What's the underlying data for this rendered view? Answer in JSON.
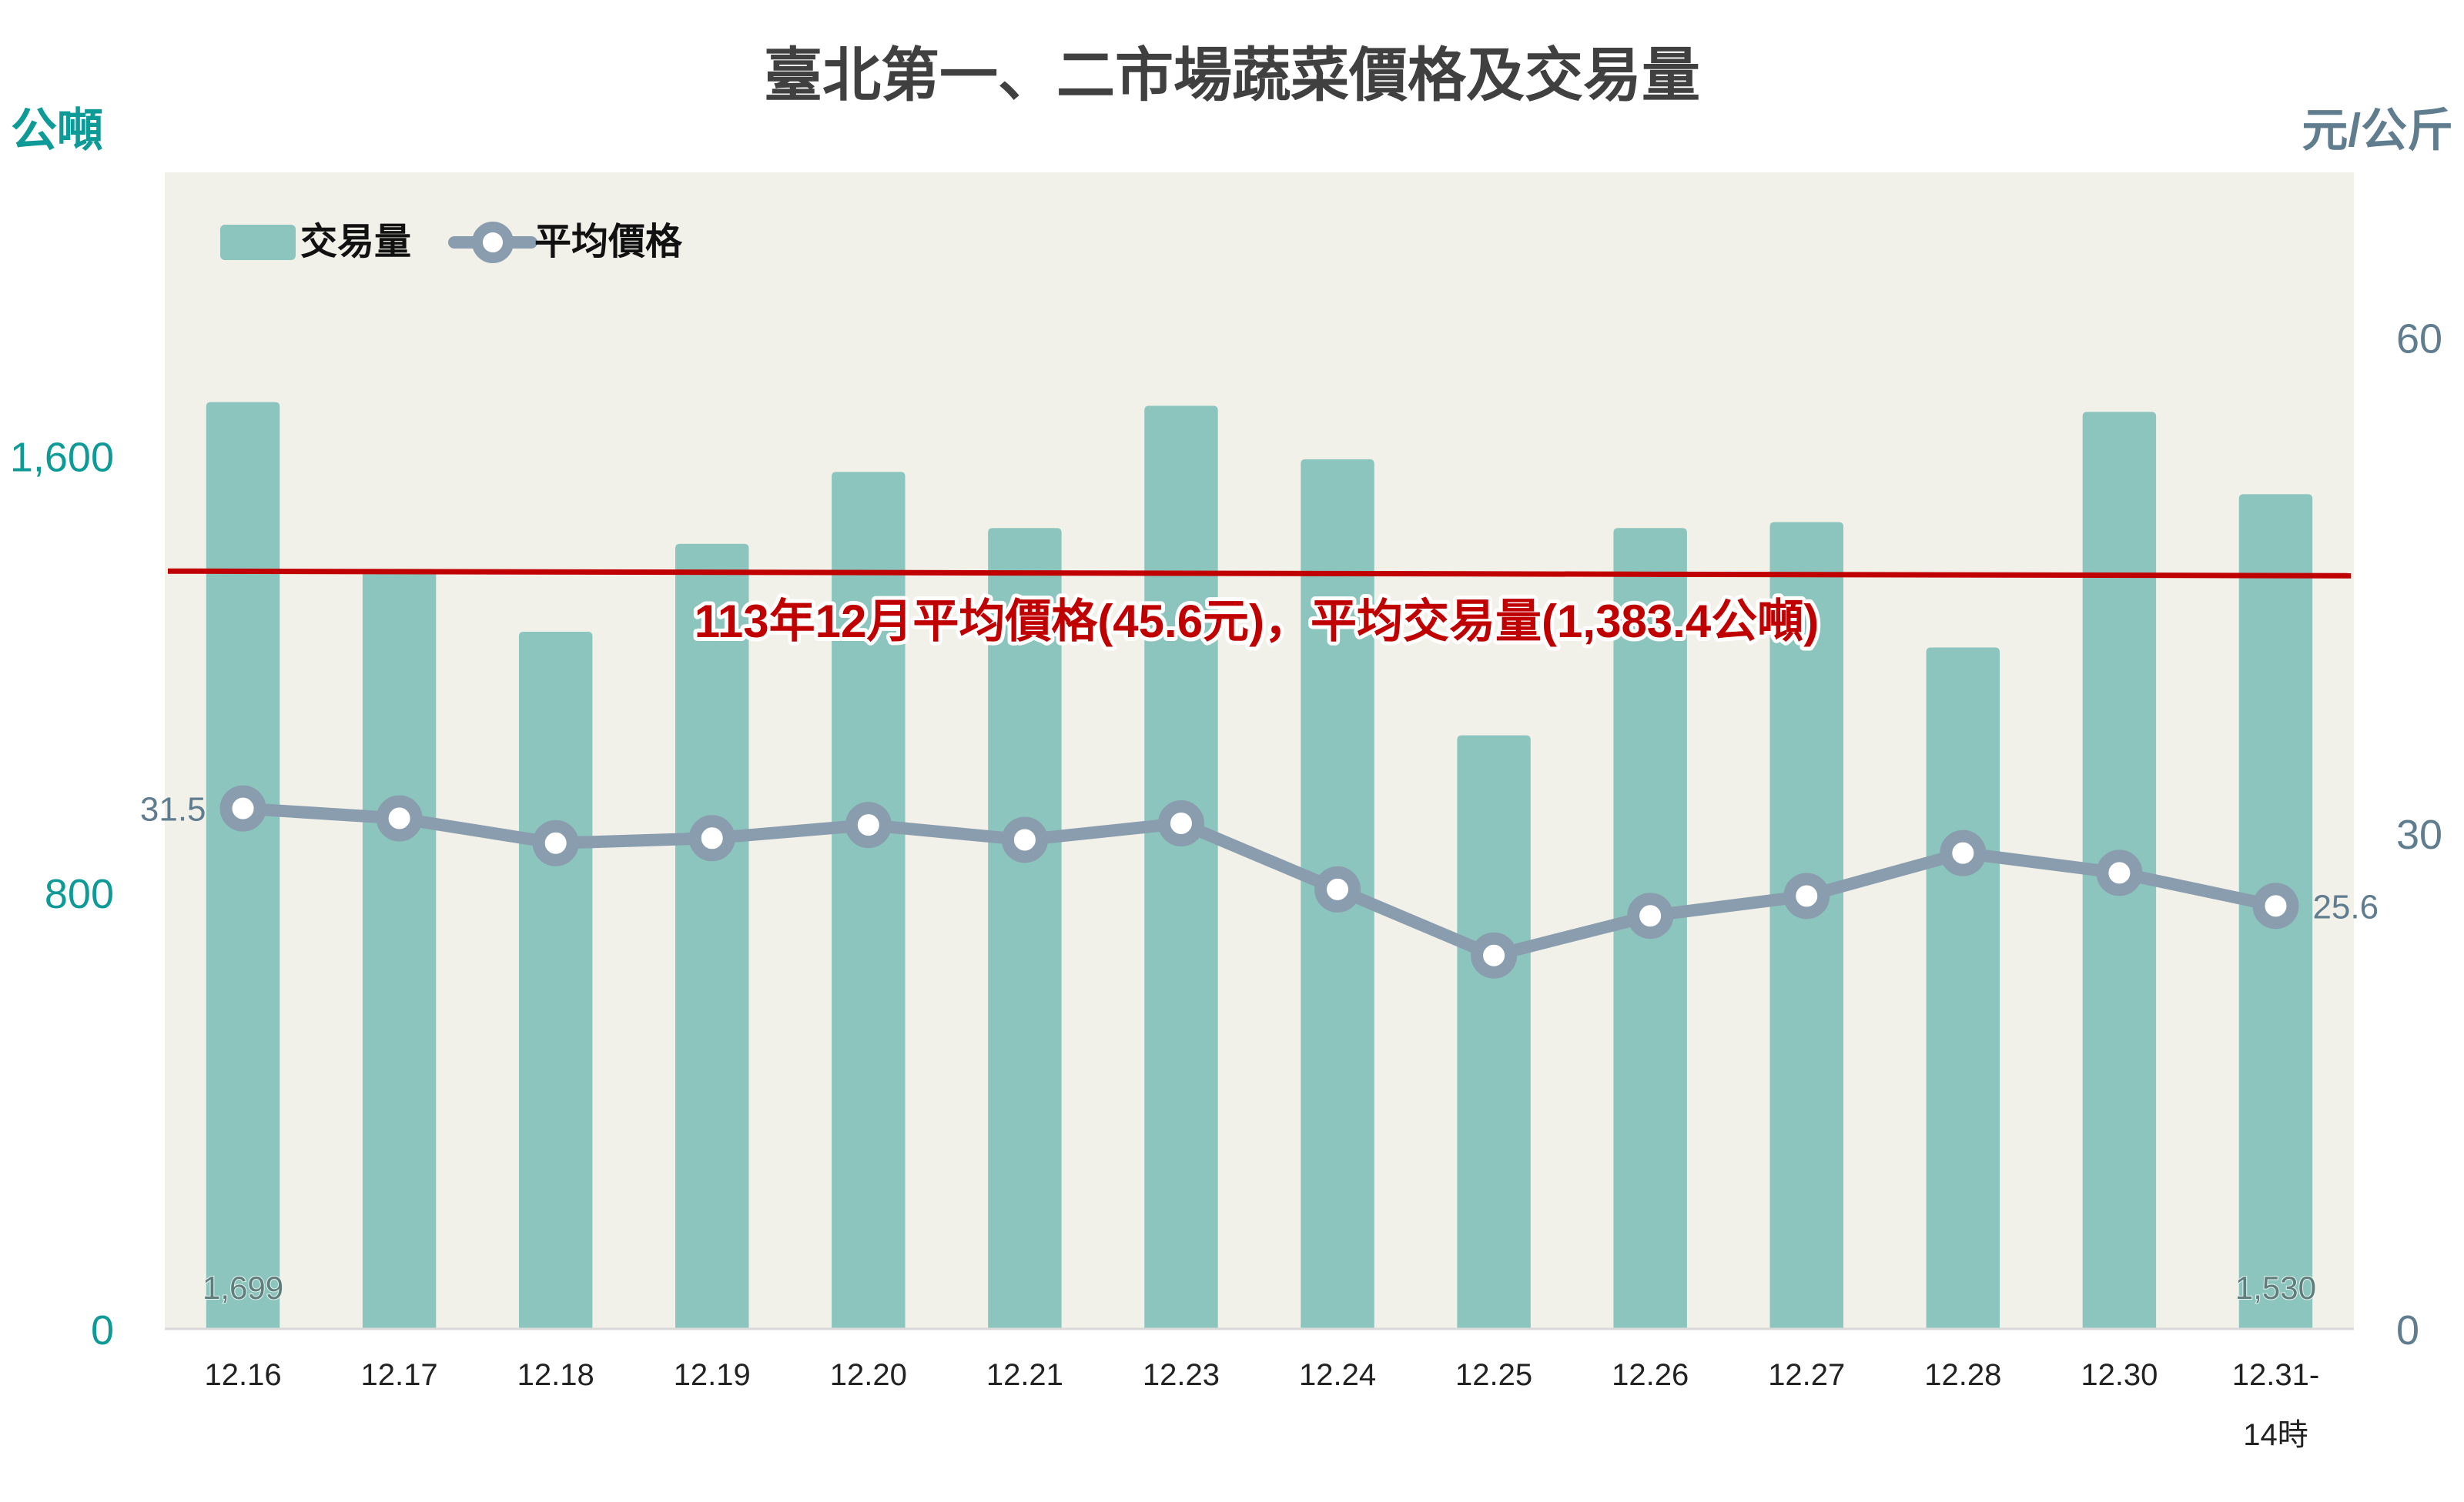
{
  "chart_data": {
    "type": "bar+line",
    "title": "臺北第一、二市場蔬菜價格及交易量",
    "left_axis": {
      "label": "公噸",
      "ylim": [
        0,
        2120
      ],
      "ticks": [
        0,
        800,
        1600
      ],
      "tick_labels": [
        "0",
        "800",
        "1,600"
      ],
      "color": "#0e9a97"
    },
    "right_axis": {
      "label": "元/公斤",
      "ylim": [
        0,
        70
      ],
      "ticks": [
        0,
        30,
        60
      ],
      "tick_labels": [
        "0",
        "30",
        "60"
      ],
      "color": "#5f7d8f"
    },
    "categories": [
      "12.16",
      "12.17",
      "12.18",
      "12.19",
      "12.20",
      "12.21",
      "12.23",
      "12.24",
      "12.25",
      "12.26",
      "12.27",
      "12.28",
      "12.30",
      "12.31-\n14時"
    ],
    "series": [
      {
        "name": "交易量",
        "type": "bar",
        "axis": "left",
        "color": "#8cc5be",
        "values": [
          1699,
          1393,
          1278,
          1439,
          1571,
          1468,
          1692,
          1594,
          1088,
          1468,
          1479,
          1249,
          1681,
          1530
        ],
        "data_labels": {
          "0": "1,699",
          "13": "1,530"
        }
      },
      {
        "name": "平均價格",
        "type": "line",
        "axis": "right",
        "color": "#8a9dae",
        "values": [
          31.5,
          30.9,
          29.4,
          29.7,
          30.5,
          29.6,
          30.6,
          26.6,
          22.6,
          25.0,
          26.2,
          28.8,
          27.6,
          25.6
        ],
        "data_labels": {
          "0": "31.5",
          "13": "25.6"
        }
      }
    ],
    "reference_line": {
      "axis": "left",
      "value": 1383.4,
      "color": "#c00000",
      "label": "113年12月平均價格(45.6元)，平均交易量(1,383.4公噸)"
    },
    "legend": {
      "position": "top-left",
      "items": [
        "交易量",
        "平均價格"
      ]
    },
    "grid": false,
    "plot_background": "#f2f1e9"
  }
}
